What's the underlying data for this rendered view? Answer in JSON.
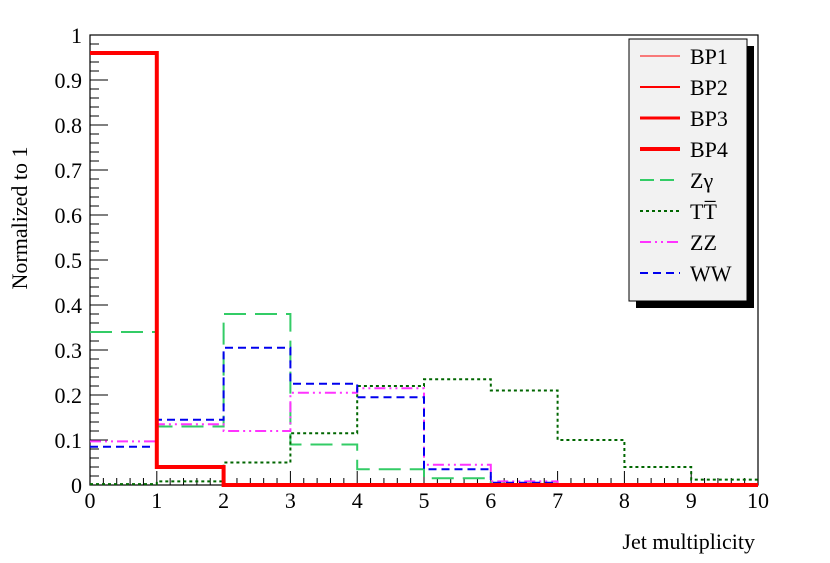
{
  "chart_data": {
    "type": "line",
    "subtype": "step-histogram",
    "title": "",
    "xlabel": "Jet multiplicity",
    "ylabel": "Normalized to 1",
    "xlim": [
      0,
      10
    ],
    "ylim": [
      0,
      1
    ],
    "x_ticks": [
      "0",
      "1",
      "2",
      "3",
      "4",
      "5",
      "6",
      "7",
      "8",
      "9",
      "10"
    ],
    "y_ticks": [
      "0",
      "0.1",
      "0.2",
      "0.3",
      "0.4",
      "0.5",
      "0.6",
      "0.7",
      "0.8",
      "0.9",
      "1"
    ],
    "bin_edges": [
      0,
      1,
      2,
      3,
      4,
      5,
      6,
      7,
      8,
      9,
      10
    ],
    "grid": false,
    "legend_position": "top-right",
    "series": [
      {
        "name": "BP1",
        "color": "#ff0000",
        "dash": "solid",
        "width": 1,
        "values": [
          0.96,
          0.04,
          0,
          0,
          0,
          0,
          0,
          0,
          0,
          0
        ]
      },
      {
        "name": "BP2",
        "color": "#ff0000",
        "dash": "solid",
        "width": 2,
        "values": [
          0.96,
          0.04,
          0,
          0,
          0,
          0,
          0,
          0,
          0,
          0
        ]
      },
      {
        "name": "BP3",
        "color": "#ff0000",
        "dash": "solid",
        "width": 3,
        "values": [
          0.96,
          0.04,
          0,
          0,
          0,
          0,
          0,
          0,
          0,
          0
        ]
      },
      {
        "name": "BP4",
        "color": "#ff0000",
        "dash": "solid",
        "width": 4,
        "values": [
          0.96,
          0.04,
          0,
          0,
          0,
          0,
          0,
          0,
          0,
          0
        ]
      },
      {
        "name": "Zγ",
        "color": "#33cc66",
        "dash": "longdash",
        "width": 2,
        "values": [
          0.34,
          0.13,
          0.38,
          0.09,
          0.035,
          0.015,
          0.003,
          0,
          0,
          0
        ]
      },
      {
        "name": "TT̅",
        "color": "#006600",
        "dash": "dotted",
        "width": 2,
        "values": [
          0.002,
          0.008,
          0.05,
          0.115,
          0.22,
          0.235,
          0.21,
          0.1,
          0.04,
          0.012
        ]
      },
      {
        "name": "ZZ",
        "color": "#ff33ff",
        "dash": "dashdotdot",
        "width": 2,
        "values": [
          0.097,
          0.135,
          0.12,
          0.205,
          0.215,
          0.045,
          0.008,
          0,
          0,
          0
        ]
      },
      {
        "name": "WW",
        "color": "#0000ee",
        "dash": "dashed",
        "width": 2,
        "values": [
          0.085,
          0.145,
          0.305,
          0.225,
          0.195,
          0.035,
          0.005,
          0,
          0,
          0
        ]
      }
    ]
  }
}
